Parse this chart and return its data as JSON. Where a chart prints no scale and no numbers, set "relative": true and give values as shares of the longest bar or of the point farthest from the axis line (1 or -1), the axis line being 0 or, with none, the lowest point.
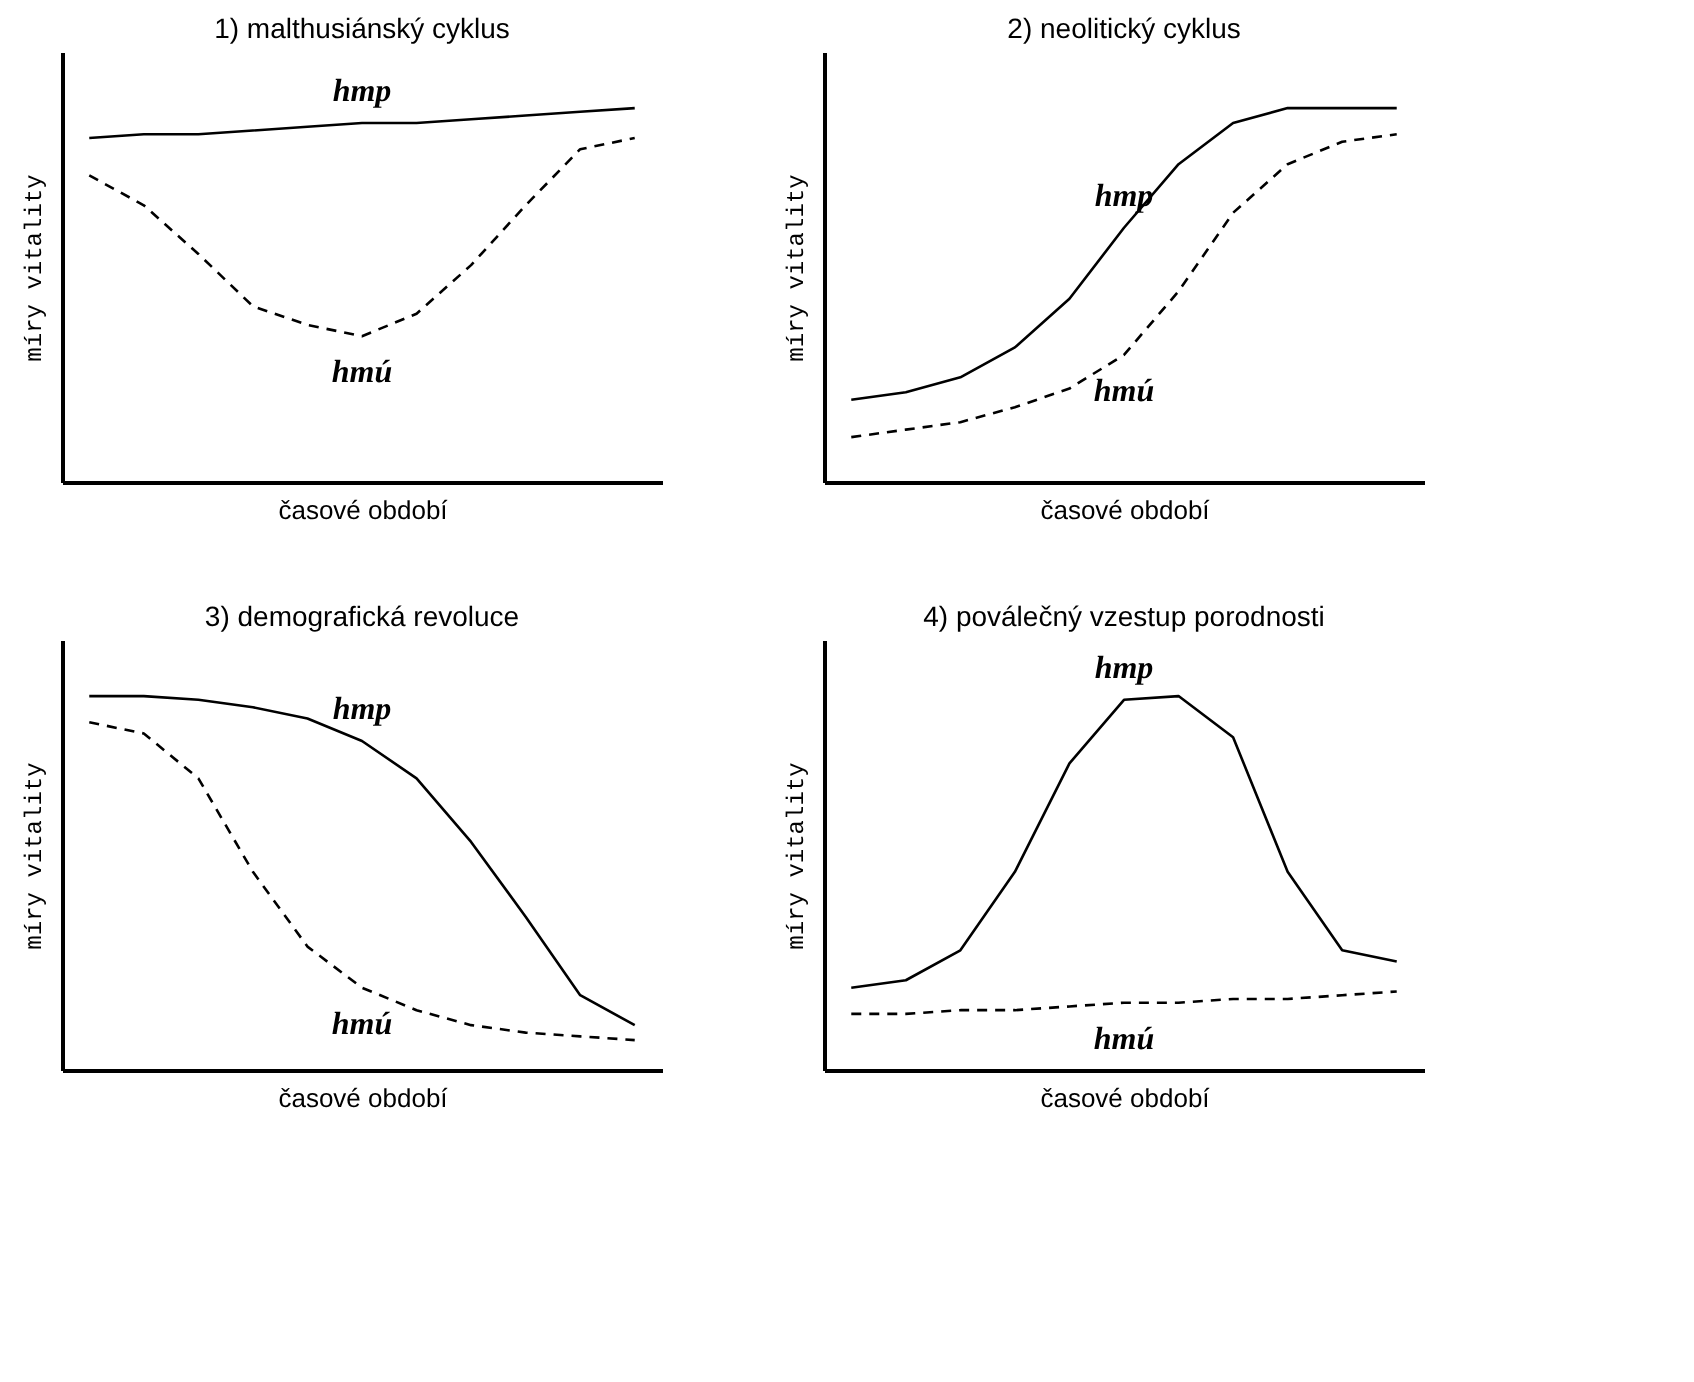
{
  "chart_data": [
    {
      "type": "line",
      "title": "1) malthusiánský cyklus",
      "xlabel": "časové období",
      "ylabel": "míry vitality",
      "relative": true,
      "categories": [
        null,
        null,
        null,
        null,
        null,
        null,
        null,
        null,
        null,
        null,
        null
      ],
      "series": [
        {
          "name": "hmp",
          "color": "#000000",
          "line_style": "solid",
          "values": [
            0.92,
            0.93,
            0.93,
            0.94,
            0.95,
            0.96,
            0.96,
            0.97,
            0.98,
            0.99,
            1.0
          ]
        },
        {
          "name": "hmú",
          "color": "#000000",
          "line_style": "dashed",
          "values": [
            0.82,
            0.74,
            0.61,
            0.47,
            0.42,
            0.39,
            0.45,
            0.58,
            0.74,
            0.89,
            0.92
          ]
        }
      ]
    },
    {
      "type": "line",
      "title": "2) neolitický cyklus",
      "xlabel": "časové období",
      "ylabel": "míry vitality",
      "relative": true,
      "categories": [
        null,
        null,
        null,
        null,
        null,
        null,
        null,
        null,
        null,
        null,
        null
      ],
      "series": [
        {
          "name": "hmp",
          "color": "#000000",
          "line_style": "solid",
          "values": [
            0.22,
            0.24,
            0.28,
            0.36,
            0.49,
            0.68,
            0.85,
            0.96,
            1.0,
            1.0,
            1.0
          ]
        },
        {
          "name": "hmú",
          "color": "#000000",
          "line_style": "dashed",
          "values": [
            0.12,
            0.14,
            0.16,
            0.2,
            0.25,
            0.34,
            0.51,
            0.72,
            0.85,
            0.91,
            0.93
          ]
        }
      ]
    },
    {
      "type": "line",
      "title": "3) demografická revoluce",
      "xlabel": "časové období",
      "ylabel": "míry vitality",
      "relative": true,
      "categories": [
        null,
        null,
        null,
        null,
        null,
        null,
        null,
        null,
        null,
        null,
        null
      ],
      "series": [
        {
          "name": "hmp",
          "color": "#000000",
          "line_style": "solid",
          "values": [
            1.0,
            1.0,
            0.99,
            0.97,
            0.94,
            0.88,
            0.78,
            0.61,
            0.41,
            0.2,
            0.12
          ]
        },
        {
          "name": "hmú",
          "color": "#000000",
          "line_style": "dashed",
          "values": [
            0.93,
            0.9,
            0.78,
            0.53,
            0.33,
            0.22,
            0.16,
            0.12,
            0.1,
            0.09,
            0.08
          ]
        }
      ]
    },
    {
      "type": "line",
      "title": "4) poválečný vzestup porodnosti",
      "xlabel": "časové období",
      "ylabel": "míry vitality",
      "relative": true,
      "categories": [
        null,
        null,
        null,
        null,
        null,
        null,
        null,
        null,
        null,
        null,
        null
      ],
      "series": [
        {
          "name": "hmp",
          "color": "#000000",
          "line_style": "solid",
          "values": [
            0.22,
            0.24,
            0.32,
            0.53,
            0.82,
            0.99,
            1.0,
            0.89,
            0.53,
            0.32,
            0.29
          ]
        },
        {
          "name": "hmú",
          "color": "#000000",
          "line_style": "dashed",
          "values": [
            0.15,
            0.15,
            0.16,
            0.16,
            0.17,
            0.18,
            0.18,
            0.19,
            0.19,
            0.2,
            0.21
          ]
        }
      ]
    }
  ]
}
